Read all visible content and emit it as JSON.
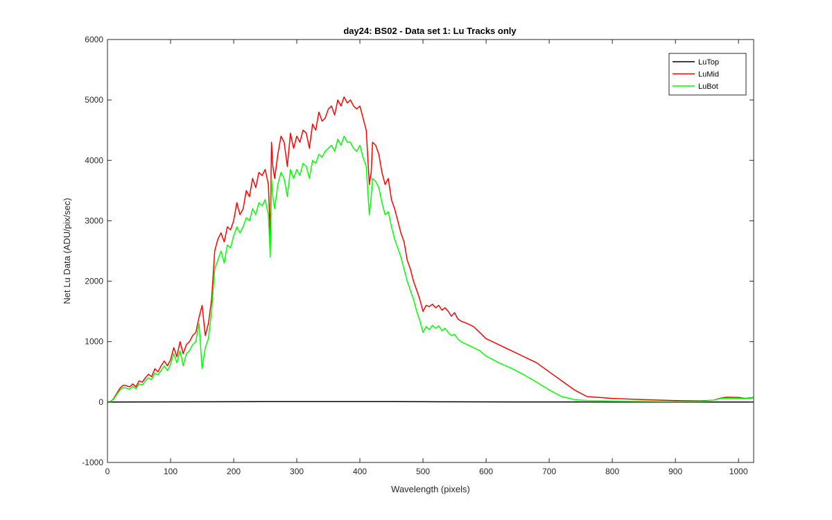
{
  "chart_data": {
    "type": "line",
    "title": "day24: BS02 - Data set 1: Lu Tracks only",
    "xlabel": "Wavelength (pixels)",
    "ylabel": "Net Lu Data (ADU/pix/sec)",
    "xlim": [
      0,
      1024
    ],
    "ylim": [
      -1000,
      6000
    ],
    "xticks": [
      0,
      100,
      200,
      300,
      400,
      500,
      600,
      700,
      800,
      900,
      1000
    ],
    "yticks": [
      -1000,
      0,
      1000,
      2000,
      3000,
      4000,
      5000,
      6000
    ],
    "grid": false,
    "legend_position": "top-right",
    "series": [
      {
        "name": "LuTop",
        "color": "#000000",
        "x": [
          0,
          50,
          100,
          150,
          200,
          250,
          300,
          350,
          400,
          450,
          500,
          550,
          600,
          650,
          700,
          750,
          800,
          850,
          900,
          950,
          1000,
          1024
        ],
        "y": [
          0,
          2,
          3,
          4,
          5,
          6,
          6,
          7,
          7,
          6,
          5,
          4,
          3,
          2,
          1,
          1,
          0,
          0,
          0,
          0,
          0,
          0
        ]
      },
      {
        "name": "LuMid",
        "color": "#ff0000",
        "x": [
          0,
          5,
          10,
          15,
          20,
          25,
          30,
          35,
          40,
          45,
          50,
          55,
          60,
          65,
          70,
          75,
          80,
          85,
          90,
          95,
          100,
          105,
          110,
          115,
          120,
          125,
          130,
          135,
          140,
          145,
          150,
          155,
          160,
          165,
          170,
          175,
          180,
          185,
          190,
          195,
          200,
          205,
          210,
          215,
          220,
          225,
          230,
          235,
          240,
          245,
          250,
          255,
          258,
          260,
          262,
          265,
          270,
          275,
          280,
          285,
          290,
          295,
          300,
          305,
          310,
          315,
          320,
          325,
          330,
          335,
          340,
          345,
          350,
          355,
          360,
          365,
          370,
          375,
          380,
          385,
          390,
          395,
          400,
          405,
          410,
          415,
          418,
          420,
          425,
          430,
          435,
          440,
          445,
          450,
          455,
          460,
          465,
          470,
          475,
          480,
          485,
          490,
          495,
          500,
          505,
          510,
          515,
          520,
          525,
          530,
          535,
          540,
          545,
          550,
          555,
          560,
          570,
          580,
          590,
          600,
          620,
          640,
          660,
          680,
          700,
          720,
          740,
          760,
          800,
          850,
          900,
          940,
          960,
          970,
          980,
          1000,
          1010,
          1024
        ],
        "y": [
          0,
          10,
          60,
          150,
          230,
          280,
          270,
          250,
          300,
          250,
          350,
          330,
          400,
          460,
          420,
          550,
          500,
          600,
          680,
          600,
          700,
          900,
          750,
          1000,
          800,
          950,
          1000,
          1100,
          1150,
          1400,
          1600,
          1100,
          1300,
          1700,
          2500,
          2700,
          2800,
          2650,
          2900,
          2850,
          3000,
          3300,
          3100,
          3200,
          3500,
          3400,
          3700,
          3550,
          3800,
          3750,
          3850,
          3600,
          2750,
          4300,
          3900,
          3700,
          4100,
          4400,
          4300,
          3900,
          4450,
          4200,
          4400,
          4300,
          4500,
          4450,
          4200,
          4600,
          4500,
          4800,
          4650,
          4700,
          4850,
          4900,
          4750,
          5000,
          4900,
          5050,
          4950,
          5000,
          4900,
          4850,
          4900,
          4700,
          4500,
          3600,
          3800,
          4300,
          4250,
          4100,
          3800,
          3600,
          3700,
          3350,
          3200,
          3000,
          2800,
          2650,
          2350,
          2200,
          2000,
          1850,
          1700,
          1500,
          1600,
          1580,
          1620,
          1560,
          1600,
          1520,
          1560,
          1500,
          1420,
          1480,
          1380,
          1340,
          1300,
          1250,
          1150,
          1050,
          950,
          850,
          750,
          650,
          500,
          350,
          200,
          90,
          60,
          40,
          25,
          20,
          30,
          60,
          80,
          75,
          60,
          75
        ]
      },
      {
        "name": "LuBot",
        "color": "#00ff00",
        "x": [
          0,
          5,
          10,
          15,
          20,
          25,
          30,
          35,
          40,
          45,
          50,
          55,
          60,
          65,
          70,
          75,
          80,
          85,
          90,
          95,
          100,
          105,
          110,
          115,
          120,
          125,
          130,
          135,
          140,
          145,
          150,
          155,
          160,
          165,
          170,
          175,
          180,
          185,
          190,
          195,
          200,
          205,
          210,
          215,
          220,
          225,
          230,
          235,
          240,
          245,
          250,
          255,
          258,
          260,
          262,
          265,
          270,
          275,
          280,
          285,
          290,
          295,
          300,
          305,
          310,
          315,
          320,
          325,
          330,
          335,
          340,
          345,
          350,
          355,
          360,
          365,
          370,
          375,
          380,
          385,
          390,
          395,
          400,
          405,
          410,
          415,
          418,
          420,
          425,
          430,
          435,
          440,
          445,
          450,
          455,
          460,
          465,
          470,
          475,
          480,
          485,
          490,
          495,
          500,
          505,
          510,
          515,
          520,
          525,
          530,
          535,
          540,
          545,
          550,
          555,
          560,
          570,
          580,
          590,
          600,
          620,
          640,
          660,
          680,
          700,
          720,
          740,
          760,
          800,
          850,
          900,
          940,
          960,
          970,
          980,
          1000,
          1010,
          1024
        ],
        "y": [
          0,
          10,
          50,
          130,
          200,
          240,
          230,
          210,
          260,
          220,
          300,
          280,
          350,
          400,
          370,
          480,
          450,
          520,
          600,
          520,
          620,
          800,
          650,
          850,
          600,
          800,
          850,
          950,
          1000,
          1300,
          550,
          900,
          1050,
          1500,
          2200,
          2350,
          2500,
          2300,
          2600,
          2550,
          2750,
          2900,
          2800,
          2900,
          3050,
          3000,
          3200,
          3100,
          3300,
          3250,
          3350,
          3100,
          2400,
          3700,
          3400,
          3200,
          3600,
          3800,
          3700,
          3400,
          3850,
          3700,
          3850,
          3750,
          3950,
          3900,
          3700,
          4000,
          3950,
          4100,
          4050,
          4150,
          4200,
          4250,
          4150,
          4350,
          4250,
          4400,
          4300,
          4300,
          4200,
          4150,
          4250,
          4050,
          3900,
          3100,
          3400,
          3700,
          3650,
          3550,
          3300,
          3100,
          3150,
          2900,
          2700,
          2550,
          2400,
          2200,
          2000,
          1850,
          1700,
          1500,
          1350,
          1150,
          1250,
          1200,
          1270,
          1220,
          1260,
          1180,
          1220,
          1150,
          1100,
          1120,
          1050,
          1000,
          950,
          900,
          850,
          760,
          650,
          560,
          450,
          330,
          200,
          90,
          40,
          25,
          15,
          10,
          8,
          10,
          30,
          55,
          65,
          60,
          55,
          70
        ]
      }
    ]
  }
}
